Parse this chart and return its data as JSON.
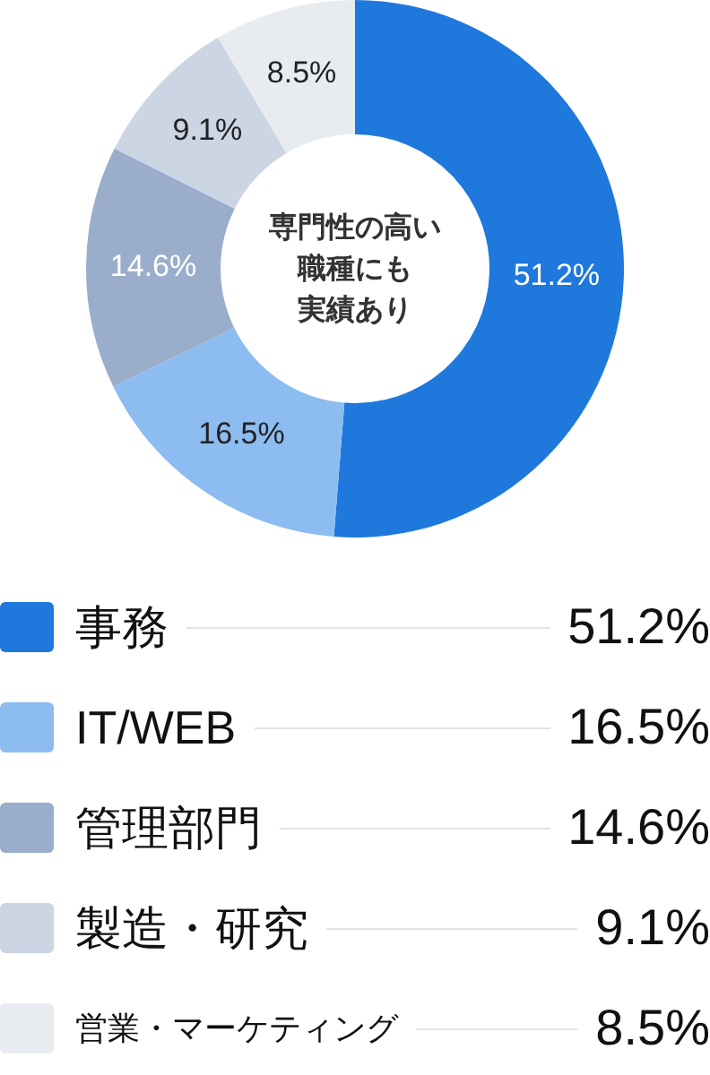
{
  "chart_data": {
    "type": "donut",
    "annotations": [
      "専門性の高い",
      "職種にも",
      "実績あり"
    ],
    "categories": [
      "事務",
      "IT/WEB",
      "管理部門",
      "製造・研究",
      "営業・マーケティング"
    ],
    "values": [
      51.2,
      16.5,
      14.6,
      9.1,
      8.5
    ],
    "value_labels": [
      "51.2%",
      "16.5%",
      "14.6%",
      "9.1%",
      "8.5%"
    ],
    "colors": [
      "#1f78dc",
      "#8cbcf0",
      "#9aaecb",
      "#cbd5e4",
      "#e8ecf0"
    ],
    "legend": "bottom"
  }
}
